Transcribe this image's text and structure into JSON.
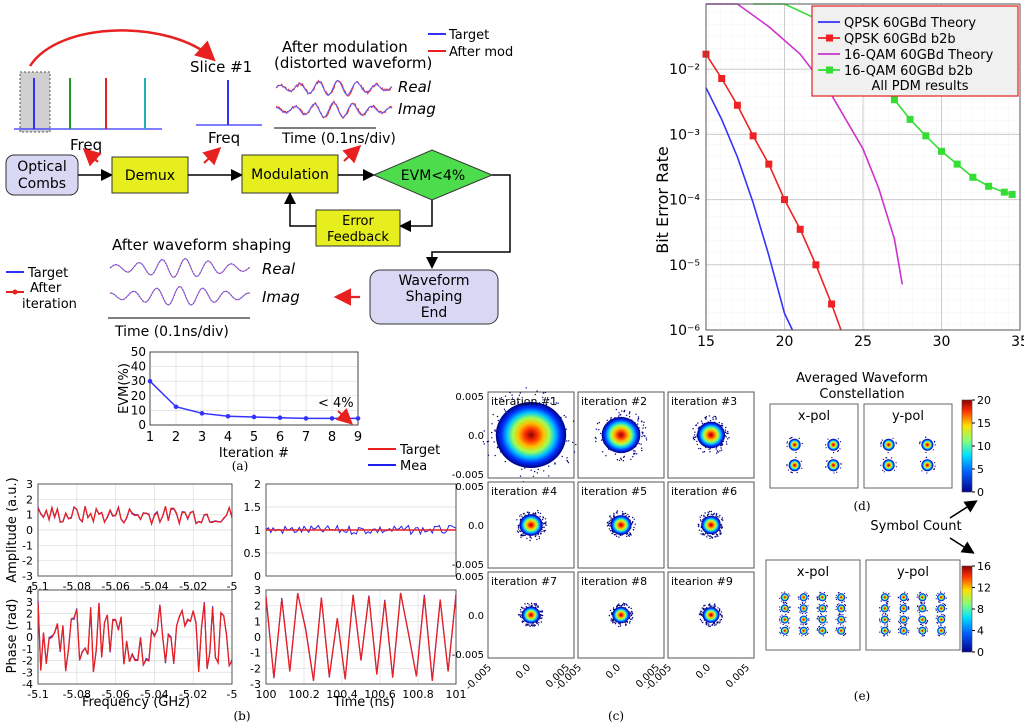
{
  "panel_a": {
    "slice_label": "Slice #1",
    "freq_label_1": "Freq",
    "freq_label_2": "Freq",
    "after_mod_title_1": "After modulation",
    "after_mod_title_2": "(distorted waveform)",
    "legend_target": "Target",
    "legend_after_mod": "After mod",
    "real": "Real",
    "imag": "Imag",
    "time_axis": "Time (0.1ns/div)",
    "optical_combs_1": "Optical",
    "optical_combs_2": "Combs",
    "demux": "Demux",
    "modulation": "Modulation",
    "evm_threshold": "EVM<4%",
    "error_feedback_1": "Error",
    "error_feedback_2": "Feedback",
    "shaping_title": "After waveform shaping",
    "shaping_real": "Real",
    "shaping_imag": "Imag",
    "shaping_time_axis": "Time (0.1ns/div)",
    "legend2_target": "Target",
    "legend2_after_1": "After",
    "legend2_after_2": "iteration",
    "end_box_1": "Waveform",
    "end_box_2": "Shaping",
    "end_box_3": "End",
    "caption": "(a)"
  },
  "panel_b": {
    "legend_target": "Target",
    "legend_mea": "Mea",
    "ylabel_amp": "Amplitude (a.u.)",
    "ylabel_phase": "Phase (rad)",
    "xlabel_freq": "Frequency (GHz)",
    "xlabel_time": "Time (ns)",
    "caption": "(b)"
  },
  "panel_c": {
    "caption": "(c)",
    "iterations": [
      "iteration #1",
      "iteration #2",
      "iteration #3",
      "iteration #4",
      "iteration #5",
      "iteration #6",
      "iteration #7",
      "iteration #8",
      "itearion #9"
    ]
  },
  "panel_d": {
    "title_1": "Averaged Waveform",
    "title_2": "Constellation",
    "xpol": "x-pol",
    "ypol": "y-pol",
    "symbol_count": "Symbol Count",
    "caption_d": "(d)",
    "caption_e": "(e)",
    "xpol_e": "x-pol",
    "ypol_e": "y-pol"
  },
  "colors": {
    "box_blue": "#d8d8f4",
    "box_yellow": "#e6ee1e",
    "diamond_green": "#4cdc4c",
    "target_blue": "#3030ff",
    "red": "#e82020",
    "magenta": "#cc33cc",
    "green": "#33dd33"
  },
  "chart_data": [
    {
      "type": "line",
      "id": "ber",
      "xlabel": "",
      "ylabel": "Bit Error Rate",
      "xlim": [
        15,
        35
      ],
      "ylim": [
        1e-06,
        0.1
      ],
      "yscale": "log",
      "xticks": [
        "15",
        "20",
        "25",
        "30",
        "35"
      ],
      "yticks": [
        "10⁻²",
        "10⁻³",
        "10⁻⁴",
        "10⁻⁵",
        "10⁻⁶"
      ],
      "legend_position": "top-right",
      "legend_note": "All PDM results",
      "series": [
        {
          "name": "QPSK 60GBd Theory",
          "color": "#3333ff",
          "marker": "none",
          "x": [
            15,
            16,
            17,
            18,
            19,
            20,
            20.5
          ],
          "y": [
            0.0052,
            0.0017,
            0.00045,
            9e-05,
            1.4e-05,
            1.8e-06,
            7e-07
          ]
        },
        {
          "name": "QPSK 60GBd b2b",
          "color": "#ee2222",
          "marker": "square",
          "x": [
            15,
            16,
            17,
            18,
            19,
            20,
            21,
            22,
            23,
            23.6
          ],
          "y": [
            0.017,
            0.0072,
            0.0028,
            0.00095,
            0.00035,
            0.0001,
            3.5e-05,
            1e-05,
            2.5e-06,
            9e-07
          ]
        },
        {
          "name": "16-QAM 60GBd Theory",
          "color": "#cc33cc",
          "marker": "none",
          "x": [
            15,
            17,
            19,
            21,
            23,
            25,
            26,
            27,
            27.5
          ],
          "y": [
            0.2,
            0.1,
            0.045,
            0.017,
            0.004,
            0.0006,
            0.00015,
            2.5e-05,
            5e-06
          ]
        },
        {
          "name": "16-QAM 60GBd b2b",
          "color": "#33dd33",
          "marker": "square",
          "x": [
            18,
            20,
            22,
            24,
            25,
            26,
            27,
            28,
            29,
            30,
            31,
            32,
            33,
            34,
            34.5
          ],
          "y": [
            0.16,
            0.13,
            0.06,
            0.024,
            0.012,
            0.0065,
            0.0034,
            0.0017,
            0.00095,
            0.00055,
            0.00035,
            0.00022,
            0.00016,
            0.00013,
            0.00012
          ]
        }
      ]
    },
    {
      "type": "line",
      "id": "evm",
      "xlabel": "Iteration #",
      "ylabel": "EVM(%)",
      "xlim": [
        1,
        9
      ],
      "ylim": [
        0,
        50
      ],
      "xticks": [
        "1",
        "2",
        "3",
        "4",
        "5",
        "6",
        "7",
        "8",
        "9"
      ],
      "yticks": [
        "0",
        "10",
        "20",
        "30",
        "40",
        "50"
      ],
      "annotation": "< 4%",
      "series": [
        {
          "color": "#3333ff",
          "x": [
            1,
            2,
            3,
            4,
            5,
            6,
            7,
            8,
            9
          ],
          "y": [
            30,
            12.5,
            8,
            6,
            5.5,
            5,
            4.5,
            4.5,
            4.5
          ]
        }
      ]
    },
    {
      "type": "line",
      "id": "amp_freq",
      "xlabel": "Frequency (GHz)",
      "ylabel": "Amplitude (a.u.)",
      "xlim": [
        -5.1,
        -5
      ],
      "ylim": [
        -3,
        3
      ],
      "xticks": [
        "-5.1",
        "-5.08",
        "-5.06",
        "-5.04",
        "-5.02",
        "-5"
      ],
      "yticks": [
        "3",
        "2",
        "1",
        "0",
        "-1",
        "-2",
        "-3"
      ]
    },
    {
      "type": "line",
      "id": "amp_time",
      "xlim": [
        100,
        101
      ],
      "ylim": [
        0,
        2
      ],
      "yticks": [
        "2",
        "1.5",
        "1",
        "0.5",
        "0"
      ],
      "series": [
        {
          "name": "Target",
          "y_constant": 1
        }
      ]
    },
    {
      "type": "line",
      "id": "phase_freq",
      "ylabel": "Phase (rad)",
      "xlabel": "Frequency (GHz)",
      "xlim": [
        -5.1,
        -5
      ],
      "ylim": [
        -4,
        4
      ],
      "xticks": [
        "-5.1",
        "-5.08",
        "-5.06",
        "-5.04",
        "-5.02",
        "-5"
      ],
      "yticks": [
        "4",
        "3",
        "2",
        "1",
        "0",
        "-1",
        "-2",
        "-3",
        "-4"
      ]
    },
    {
      "type": "line",
      "id": "phase_time",
      "xlabel": "Time (ns)",
      "xlim": [
        100,
        101
      ],
      "ylim": [
        -3,
        3
      ],
      "xticks": [
        "100",
        "100.2",
        "100.4",
        "100.6",
        "100.8",
        "101"
      ],
      "yticks": [
        "3",
        "2",
        "1",
        "0",
        "-1",
        "-2",
        "-3"
      ]
    },
    {
      "type": "scatter",
      "id": "constellation_iterations",
      "xlim": [
        -0.005,
        0.005
      ],
      "ylim": [
        -0.005,
        0.005
      ],
      "xticks": [
        "-0.005",
        "0.0",
        "0.005"
      ],
      "yticks": [
        "0.005",
        "0.0",
        "-0.005"
      ],
      "spread_by_iteration": [
        1.0,
        0.55,
        0.4,
        0.33,
        0.3,
        0.28,
        0.26,
        0.25,
        0.24
      ]
    },
    {
      "type": "heatmap",
      "id": "colorbar_d",
      "ticks": [
        "20",
        "15",
        "10",
        "5",
        "0"
      ]
    },
    {
      "type": "heatmap",
      "id": "colorbar_e",
      "ticks": [
        "16",
        "12",
        "8",
        "4",
        "0"
      ]
    }
  ]
}
